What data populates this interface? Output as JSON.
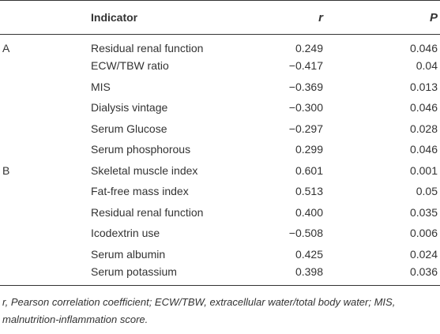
{
  "table": {
    "headers": {
      "group": "",
      "indicator": "Indicator",
      "r": "r",
      "p": "P"
    },
    "rows": [
      {
        "group": "A",
        "indicator": "Residual renal function",
        "r": "0.249",
        "p": "0.046"
      },
      {
        "group": "",
        "indicator": "ECW/TBW ratio",
        "r": "−0.417",
        "p": "0.04"
      },
      {
        "group": "",
        "indicator": "MIS",
        "r": "−0.369",
        "p": "0.013"
      },
      {
        "group": "",
        "indicator": "Dialysis vintage",
        "r": "−0.300",
        "p": "0.046"
      },
      {
        "group": "",
        "indicator": "Serum Glucose",
        "r": "−0.297",
        "p": "0.028"
      },
      {
        "group": "",
        "indicator": "Serum phosphorous",
        "r": "0.299",
        "p": "0.046"
      },
      {
        "group": "B",
        "indicator": "Skeletal muscle index",
        "r": "0.601",
        "p": "0.001"
      },
      {
        "group": "",
        "indicator": "Fat-free mass index",
        "r": "0.513",
        "p": "0.05"
      },
      {
        "group": "",
        "indicator": "Residual renal function",
        "r": "0.400",
        "p": "0.035"
      },
      {
        "group": "",
        "indicator": "Icodextrin use",
        "r": "−0.508",
        "p": "0.006"
      },
      {
        "group": "",
        "indicator": "Serum albumin",
        "r": "0.425",
        "p": "0.024"
      },
      {
        "group": "",
        "indicator": "Serum potassium",
        "r": "0.398",
        "p": "0.036"
      }
    ]
  },
  "footnote": "r, Pearson correlation coefficient; ECW/TBW, extracellular water/total body water; MIS, malnutrition-inflammation score."
}
